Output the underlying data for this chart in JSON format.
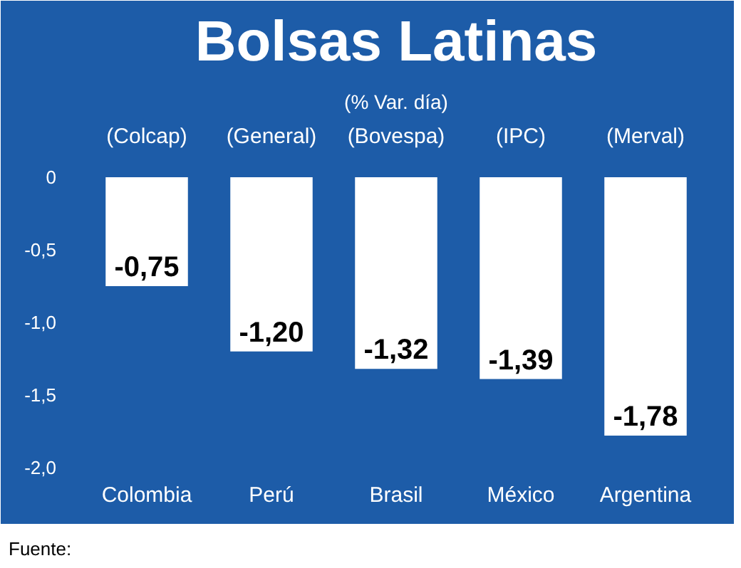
{
  "chart_data": {
    "type": "bar",
    "title": "Bolsas Latinas",
    "subtitle": "(% Var. día)",
    "categories": [
      "Colombia",
      "Perú",
      "Brasil",
      "México",
      "Argentina"
    ],
    "values": [
      -0.75,
      -1.2,
      -1.32,
      -1.39,
      -1.78
    ],
    "value_labels": [
      "-0,75",
      "-1,20",
      "-1,32",
      "-1,39",
      "-1,78"
    ],
    "color": "#ffffff",
    "ylim": [
      -2.0,
      0
    ],
    "yticks": [
      0,
      {
        "value": -0.5,
        "label": "-0,5"
      },
      {
        "value": -1.0,
        "label": "-1,0"
      },
      {
        "value": -1.5,
        "label": "-1,5"
      },
      {
        "value": -2.0,
        "label": "-2,0"
      }
    ],
    "annotations": [
      "(Colcap)",
      "(General)",
      "(Bovespa)",
      "(IPC)",
      "(Merval)",
      "Fuente:"
    ],
    "grid": false
  }
}
